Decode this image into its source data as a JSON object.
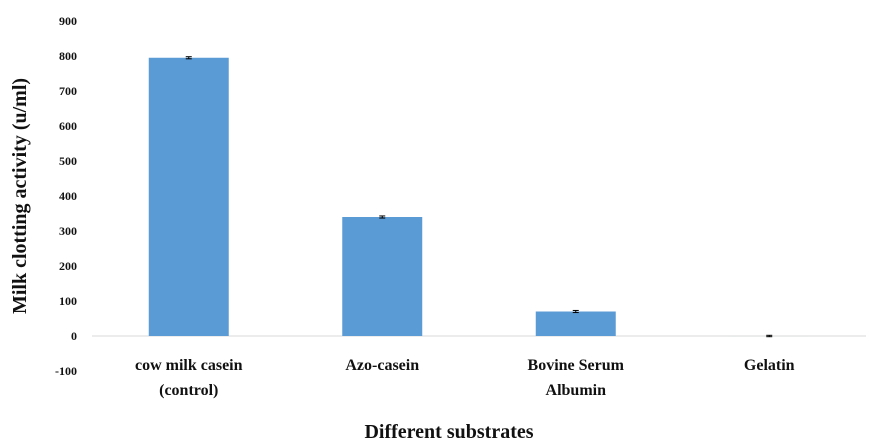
{
  "chart_data": {
    "type": "bar",
    "title": "",
    "xlabel": "Different substrates",
    "ylabel": "Milk clotting activity (u/ml)",
    "ylim": [
      -100,
      900
    ],
    "yticks": [
      -100,
      0,
      100,
      200,
      300,
      400,
      500,
      600,
      700,
      800,
      900
    ],
    "categories": [
      [
        "cow milk casein",
        "(control)"
      ],
      [
        "Azo-casein"
      ],
      [
        "Bovine Serum",
        "Albumin"
      ],
      [
        "Gelatin"
      ]
    ],
    "values": [
      795,
      340,
      70,
      0
    ],
    "error": [
      3,
      3,
      3,
      2
    ],
    "grid": false,
    "legend": "none",
    "bar_color": "#5b9bd5",
    "axis_color": "#d9d9d9",
    "text_color": "#111111"
  }
}
